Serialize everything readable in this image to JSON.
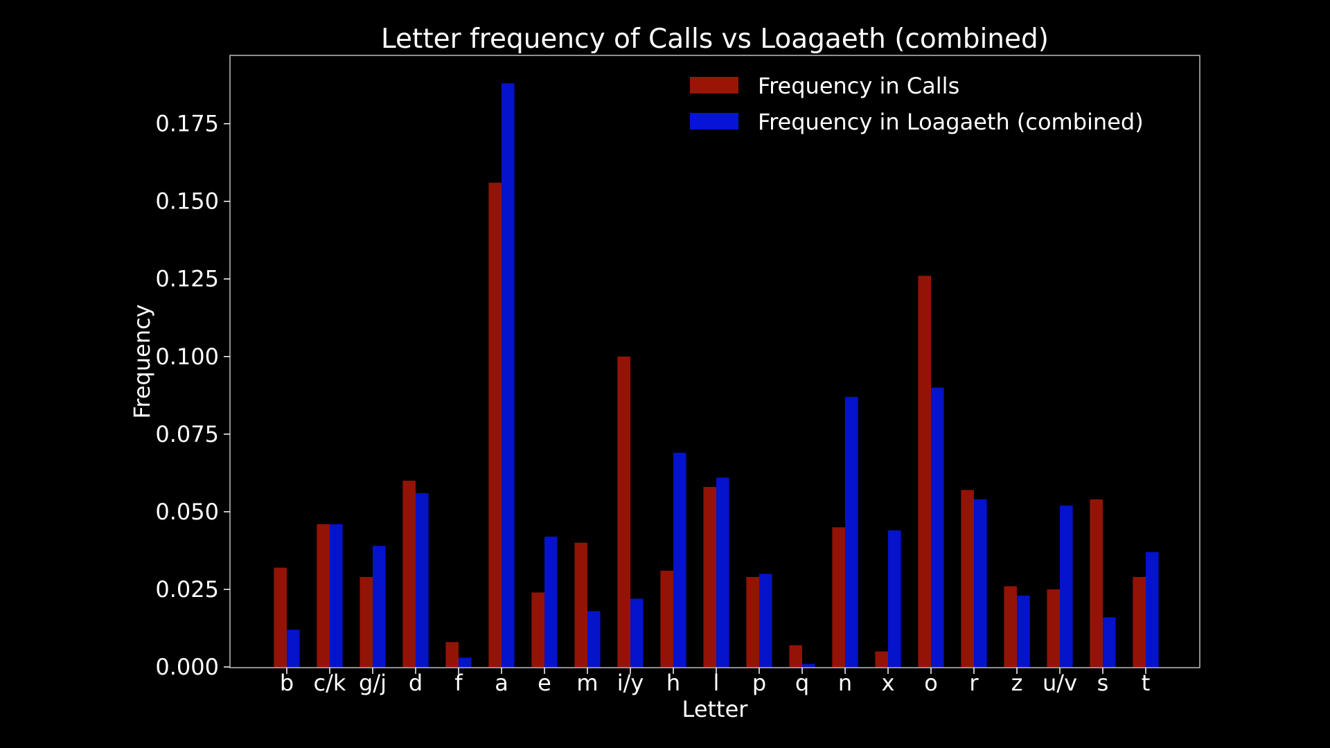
{
  "chart_data": {
    "type": "bar",
    "title": "Letter frequency of Calls vs Loagaeth (combined)",
    "xlabel": "Letter",
    "ylabel": "Frequency",
    "categories": [
      "b",
      "c/k",
      "g/j",
      "d",
      "f",
      "a",
      "e",
      "m",
      "i/y",
      "h",
      "l",
      "p",
      "q",
      "n",
      "x",
      "o",
      "r",
      "z",
      "u/v",
      "s",
      "t"
    ],
    "series": [
      {
        "name": "Frequency in Calls",
        "color": "#9b1506",
        "values": [
          0.032,
          0.046,
          0.029,
          0.06,
          0.008,
          0.156,
          0.024,
          0.04,
          0.1,
          0.031,
          0.058,
          0.029,
          0.007,
          0.045,
          0.005,
          0.126,
          0.057,
          0.026,
          0.025,
          0.054,
          0.029
        ]
      },
      {
        "name": "Frequency in Loagaeth (combined)",
        "color": "#0514d6",
        "values": [
          0.012,
          0.046,
          0.039,
          0.056,
          0.003,
          0.188,
          0.042,
          0.018,
          0.022,
          0.069,
          0.061,
          0.03,
          0.001,
          0.087,
          0.044,
          0.09,
          0.054,
          0.023,
          0.052,
          0.016,
          0.037
        ]
      }
    ],
    "yticks": [
      "0.000",
      "0.025",
      "0.050",
      "0.075",
      "0.100",
      "0.125",
      "0.150",
      "0.175"
    ],
    "ylim": [
      0,
      0.197
    ],
    "grid": false,
    "legend_position": "top-right"
  }
}
